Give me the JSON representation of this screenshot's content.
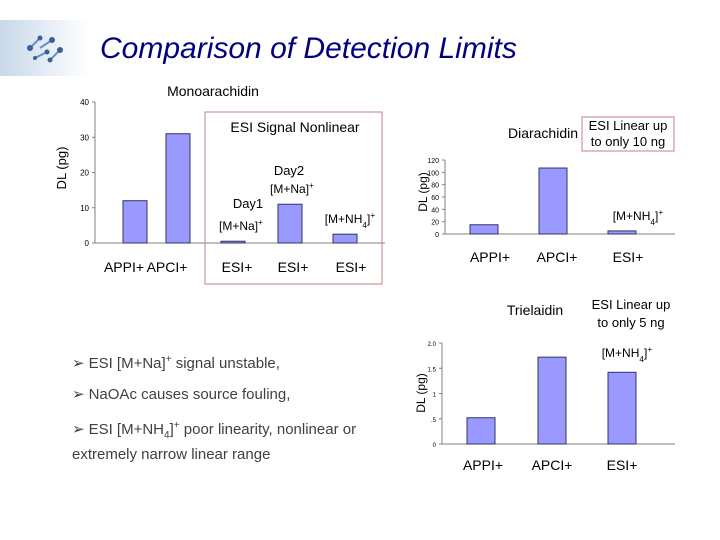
{
  "page_title": "Comparison of Detection Limits",
  "colors": {
    "title": "#000080",
    "bar_fill": "#9999FF",
    "bar_stroke": "#333366",
    "box_stroke": "#C08080"
  },
  "bullets": [
    {
      "text": "ESI [M+Na]+ signal unstable,"
    },
    {
      "text": "NaOAc causes source fouling,"
    },
    {
      "text": "ESI [M+NH4]+ poor linearity, nonlinear or extremely narrow linear range"
    }
  ],
  "chart_data": [
    {
      "type": "bar",
      "title": "Monoarachidin",
      "ylabel": "DL (pg)",
      "ylim": [
        0,
        40
      ],
      "yticks": [
        "0",
        "10",
        "20",
        "30",
        "40"
      ],
      "categories": [
        "APPI+",
        "APCI+",
        "ESI+",
        "ESI+",
        "ESI+"
      ],
      "values": [
        12,
        31,
        0.5,
        11,
        2.5
      ],
      "bar_annotations": [
        "",
        "",
        "Day1 [M+Na]+",
        "Day2 [M+Na]+",
        "[M+NH4]+"
      ],
      "annotation": "ESI Signal Nonlinear"
    },
    {
      "type": "bar",
      "title": "Diarachidin",
      "ylabel": "DL (pg)",
      "ylim": [
        0,
        120
      ],
      "yticks": [
        "0",
        "20",
        "40",
        "60",
        "80",
        "100",
        "120"
      ],
      "categories": [
        "APPI+",
        "APCI+",
        "ESI+"
      ],
      "values": [
        15,
        107,
        5
      ],
      "bar_annotations": [
        "",
        "",
        "[M+NH4]+"
      ],
      "annotation": "ESI Linear up to only 10 ng"
    },
    {
      "type": "bar",
      "title": "Trielaidin",
      "ylabel": "DL (pg)",
      "ylim": [
        0,
        2.0
      ],
      "yticks": [
        "0",
        ".5",
        "1",
        "1.5",
        "2.0"
      ],
      "categories": [
        "APPI+",
        "APCI+",
        "ESI+"
      ],
      "values": [
        0.52,
        1.72,
        1.42
      ],
      "bar_annotations": [
        "",
        "",
        "[M+NH4]+"
      ],
      "annotation": "ESI Linear up to only 5 ng"
    }
  ]
}
